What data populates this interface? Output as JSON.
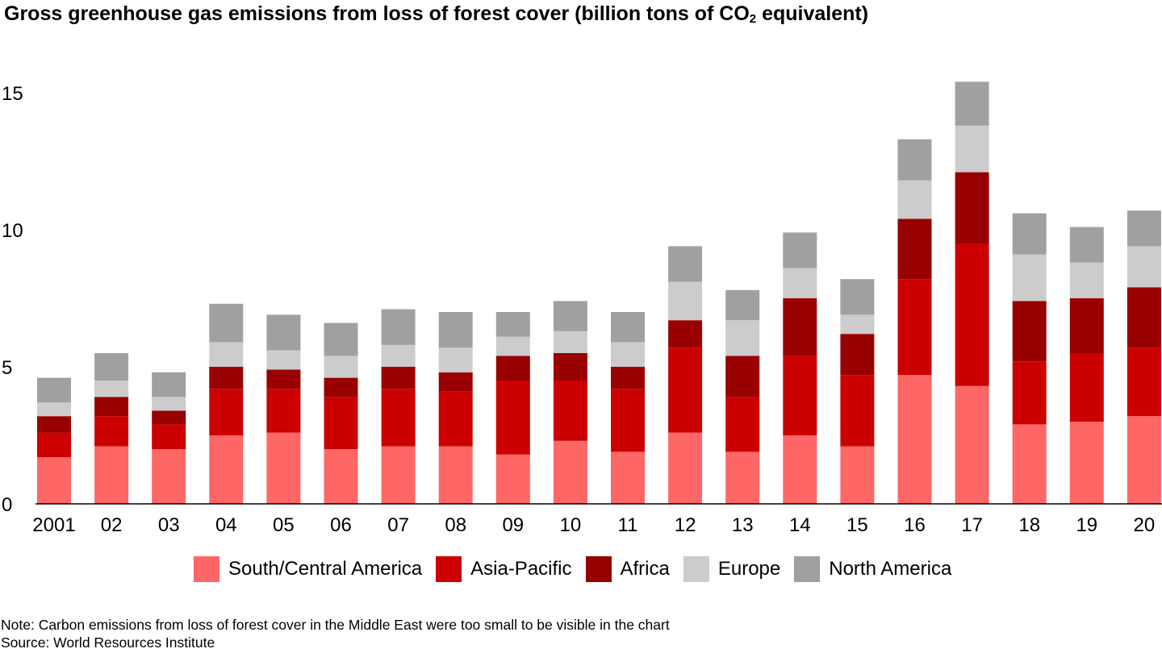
{
  "chart_data": {
    "type": "bar",
    "stacked": true,
    "title": "Gross greenhouse gas emissions from loss of forest cover (billion tons of CO",
    "title_subscript": "2",
    "title_suffix": " equivalent)",
    "xlabel": "",
    "ylabel": "",
    "ylim": [
      0,
      15
    ],
    "yticks": [
      0,
      5,
      10,
      15
    ],
    "grid": false,
    "legend_position": "bottom",
    "categories": [
      "2001",
      "02",
      "03",
      "04",
      "05",
      "06",
      "07",
      "08",
      "09",
      "10",
      "11",
      "12",
      "13",
      "14",
      "15",
      "16",
      "17",
      "18",
      "19",
      "20"
    ],
    "series": [
      {
        "name": "South/Central America",
        "color": "#ff6666",
        "values": [
          1.7,
          2.1,
          2.0,
          2.5,
          2.6,
          2.0,
          2.1,
          2.1,
          1.8,
          2.3,
          1.9,
          2.6,
          1.9,
          2.5,
          2.1,
          4.7,
          4.3,
          2.9,
          3.0,
          3.2
        ]
      },
      {
        "name": "Asia-Pacific",
        "color": "#cc0000",
        "values": [
          0.9,
          1.1,
          0.9,
          1.7,
          1.6,
          1.9,
          2.1,
          2.0,
          2.7,
          2.2,
          2.3,
          3.1,
          2.0,
          2.9,
          2.6,
          3.5,
          5.2,
          2.3,
          2.5,
          2.5
        ]
      },
      {
        "name": "Africa",
        "color": "#990000",
        "values": [
          0.6,
          0.7,
          0.5,
          0.8,
          0.7,
          0.7,
          0.8,
          0.7,
          0.9,
          1.0,
          0.8,
          1.0,
          1.5,
          2.1,
          1.5,
          2.2,
          2.6,
          2.2,
          2.0,
          2.2
        ]
      },
      {
        "name": "Europe",
        "color": "#cccccc",
        "values": [
          0.5,
          0.6,
          0.5,
          0.9,
          0.7,
          0.8,
          0.8,
          0.9,
          0.7,
          0.8,
          0.9,
          1.4,
          1.3,
          1.1,
          0.7,
          1.4,
          1.7,
          1.7,
          1.3,
          1.5
        ]
      },
      {
        "name": "North America",
        "color": "#a0a0a0",
        "values": [
          0.9,
          1.0,
          0.9,
          1.4,
          1.3,
          1.2,
          1.3,
          1.3,
          0.9,
          1.1,
          1.1,
          1.3,
          1.1,
          1.3,
          1.3,
          1.5,
          1.6,
          1.5,
          1.3,
          1.3
        ]
      }
    ]
  },
  "notes": {
    "note": "Note: Carbon emissions from loss of forest cover in the Middle East were too small to be visible in the chart",
    "source": "Source: World Resources Institute"
  }
}
